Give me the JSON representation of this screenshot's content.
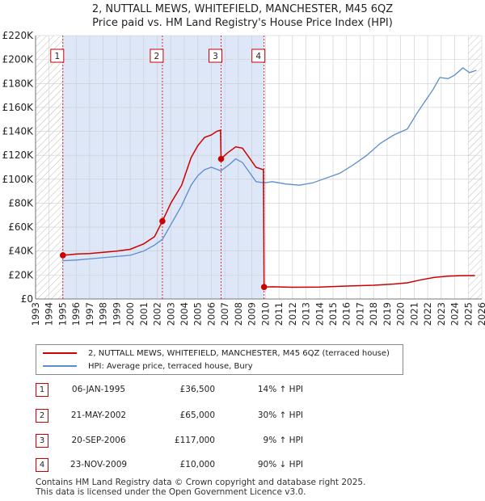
{
  "title_line1": "2, NUTTALL MEWS, WHITEFIELD, MANCHESTER, M45 6QZ",
  "title_line2": "Price paid vs. HM Land Registry's House Price Index (HPI)",
  "colors": {
    "property": "#cc0000",
    "hpi": "#5b8ccc",
    "shade": "#dde7f7",
    "grid": "#cccccc",
    "marker_line": "#cc0000"
  },
  "chart_data": {
    "type": "line",
    "x_range": [
      1993,
      2026
    ],
    "ylim": [
      0,
      220000
    ],
    "x_ticks": [
      1993,
      1994,
      1995,
      1996,
      1997,
      1998,
      1999,
      2000,
      2001,
      2002,
      2003,
      2004,
      2005,
      2006,
      2007,
      2008,
      2009,
      2010,
      2011,
      2012,
      2013,
      2014,
      2015,
      2016,
      2017,
      2018,
      2019,
      2020,
      2021,
      2022,
      2023,
      2024,
      2025,
      2026
    ],
    "y_ticks": [
      0,
      20000,
      40000,
      60000,
      80000,
      100000,
      120000,
      140000,
      160000,
      180000,
      200000,
      220000
    ],
    "y_tick_labels": [
      "£0",
      "£20K",
      "£40K",
      "£60K",
      "£80K",
      "£100K",
      "£120K",
      "£140K",
      "£160K",
      "£180K",
      "£200K",
      "£220K"
    ],
    "shaded_range": [
      1995.02,
      2009.9
    ],
    "series": [
      {
        "name": "2, NUTTALL MEWS, WHITEFIELD, MANCHESTER, M45 6QZ (terraced house)",
        "points": [
          [
            1995.02,
            36500
          ],
          [
            1995.5,
            37000
          ],
          [
            1996,
            37500
          ],
          [
            1997,
            38000
          ],
          [
            1998,
            39000
          ],
          [
            1999,
            40000
          ],
          [
            2000,
            41500
          ],
          [
            2001,
            46000
          ],
          [
            2001.8,
            52000
          ],
          [
            2002.38,
            65000
          ],
          [
            2003,
            80000
          ],
          [
            2003.8,
            95000
          ],
          [
            2004.5,
            118000
          ],
          [
            2005,
            128000
          ],
          [
            2005.5,
            135000
          ],
          [
            2006,
            137000
          ],
          [
            2006.4,
            140000
          ],
          [
            2006.68,
            141000
          ],
          [
            2006.72,
            117000
          ],
          [
            2007.2,
            122000
          ],
          [
            2007.8,
            127000
          ],
          [
            2008.3,
            126000
          ],
          [
            2008.8,
            118000
          ],
          [
            2009.3,
            110000
          ],
          [
            2009.85,
            108000
          ],
          [
            2009.9,
            10000
          ],
          [
            2010.5,
            10200
          ],
          [
            2012,
            9800
          ],
          [
            2014,
            10000
          ],
          [
            2016,
            10800
          ],
          [
            2018,
            11500
          ],
          [
            2019.5,
            12500
          ],
          [
            2020.5,
            13500
          ],
          [
            2021.5,
            16000
          ],
          [
            2022.5,
            18000
          ],
          [
            2023.5,
            19000
          ],
          [
            2024.5,
            19500
          ],
          [
            2025.5,
            19500
          ]
        ]
      },
      {
        "name": "HPI: Average price, terraced house, Bury",
        "points": [
          [
            1995,
            32000
          ],
          [
            1996,
            32500
          ],
          [
            1997,
            33500
          ],
          [
            1998,
            34500
          ],
          [
            1999,
            35500
          ],
          [
            2000,
            36500
          ],
          [
            2001,
            40000
          ],
          [
            2001.8,
            45000
          ],
          [
            2002.4,
            50000
          ],
          [
            2003,
            62000
          ],
          [
            2003.8,
            78000
          ],
          [
            2004.5,
            95000
          ],
          [
            2005,
            103000
          ],
          [
            2005.5,
            108000
          ],
          [
            2006,
            110000
          ],
          [
            2006.7,
            107000
          ],
          [
            2007.3,
            112000
          ],
          [
            2007.8,
            117000
          ],
          [
            2008.3,
            114000
          ],
          [
            2008.8,
            106000
          ],
          [
            2009.3,
            98000
          ],
          [
            2009.9,
            97000
          ],
          [
            2010.5,
            98000
          ],
          [
            2011.5,
            96000
          ],
          [
            2012.5,
            95000
          ],
          [
            2013.5,
            97000
          ],
          [
            2014.5,
            101000
          ],
          [
            2015.5,
            105000
          ],
          [
            2016.5,
            112000
          ],
          [
            2017.5,
            120000
          ],
          [
            2018.5,
            130000
          ],
          [
            2019.5,
            137000
          ],
          [
            2020.5,
            142000
          ],
          [
            2021.2,
            155000
          ],
          [
            2021.8,
            165000
          ],
          [
            2022.4,
            175000
          ],
          [
            2022.9,
            185000
          ],
          [
            2023.5,
            184000
          ],
          [
            2024,
            187000
          ],
          [
            2024.6,
            193000
          ],
          [
            2025.1,
            189000
          ],
          [
            2025.6,
            191000
          ]
        ]
      }
    ],
    "sales": [
      {
        "label": "1",
        "x": 1995.02,
        "price": 36500
      },
      {
        "label": "2",
        "x": 2002.38,
        "price": 65000
      },
      {
        "label": "3",
        "x": 2006.72,
        "price": 117000
      },
      {
        "label": "4",
        "x": 2009.9,
        "price": 10000
      }
    ]
  },
  "legend": {
    "property_label": "2, NUTTALL MEWS, WHITEFIELD, MANCHESTER, M45 6QZ (terraced house)",
    "hpi_label": "HPI: Average price, terraced house, Bury"
  },
  "transactions": [
    {
      "num": "1",
      "date": "06-JAN-1995",
      "price": "£36,500",
      "hpi": "14% ↑ HPI"
    },
    {
      "num": "2",
      "date": "21-MAY-2002",
      "price": "£65,000",
      "hpi": "30% ↑ HPI"
    },
    {
      "num": "3",
      "date": "20-SEP-2006",
      "price": "£117,000",
      "hpi": "9% ↑ HPI"
    },
    {
      "num": "4",
      "date": "23-NOV-2009",
      "price": "£10,000",
      "hpi": "90% ↓ HPI"
    }
  ],
  "footer": {
    "line1": "Contains HM Land Registry data © Crown copyright and database right 2025.",
    "line2": "This data is licensed under the Open Government Licence v3.0."
  }
}
